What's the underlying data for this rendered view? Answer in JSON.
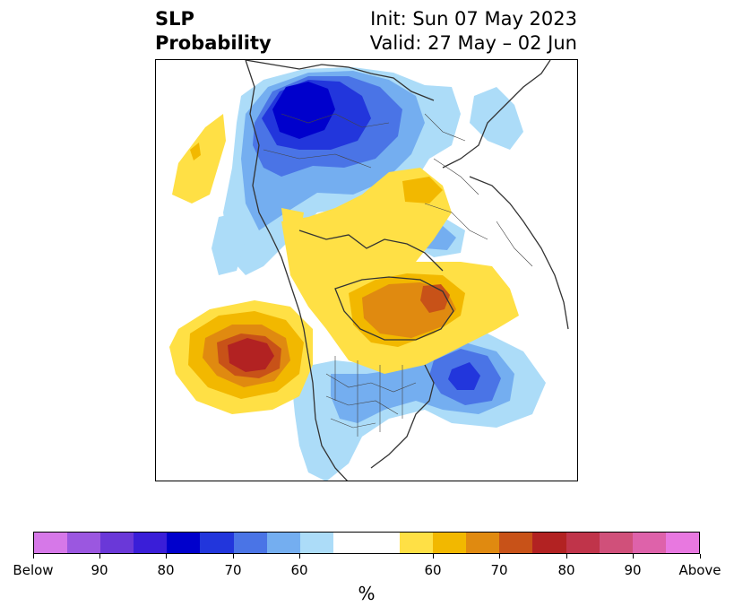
{
  "title": {
    "left_line1": "SLP",
    "left_line2": "Probability",
    "right_line1": "Init: Sun 07 May 2023",
    "right_line2": "Valid: 27 May – 02 Jun"
  },
  "colorbar": {
    "unit_label": "%",
    "colors": [
      "#d678e8",
      "#9b57e0",
      "#6a38d8",
      "#3a1ed8",
      "#0000cc",
      "#2236dc",
      "#4a74e6",
      "#74aef0",
      "#acdcf8",
      "#ffffff",
      "#ffffff",
      "#ffe045",
      "#f2b800",
      "#e08a10",
      "#c85218",
      "#b22222",
      "#c0344a",
      "#d0507a",
      "#de62aa",
      "#e878e0"
    ],
    "ticks": [
      "Below",
      "90",
      "80",
      "70",
      "60",
      "60",
      "70",
      "80",
      "90",
      "Above"
    ]
  },
  "map": {
    "projection": "north-polar",
    "below_normal_colors": {
      "p60": "#acdcf8",
      "p70": "#74aef0",
      "p80": "#4a74e6",
      "p90": "#2236dc",
      "p100": "#0000cc"
    },
    "above_normal_colors": {
      "p60": "#ffe045",
      "p70": "#f2b800",
      "p80": "#e08a10",
      "p90": "#c85218",
      "p100": "#b22222"
    },
    "coastline_color": "#333333"
  }
}
